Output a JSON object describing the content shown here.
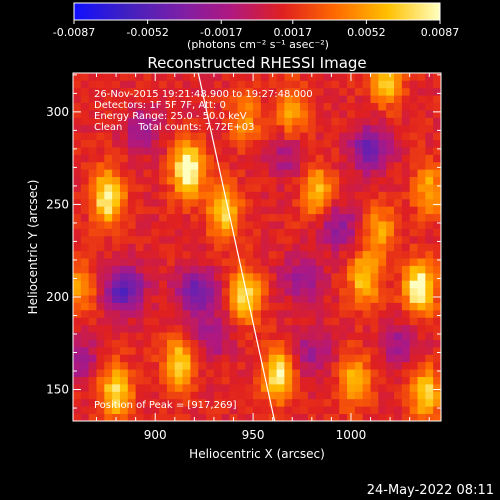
{
  "chart_data": {
    "type": "heatmap",
    "title": "Reconstructed RHESSI Image",
    "xlabel": "Heliocentric X (arcsec)",
    "ylabel": "Heliocentric Y (arcsec)",
    "xlim": [
      858,
      1046
    ],
    "ylim": [
      133,
      321
    ],
    "x_ticks": [
      900,
      950,
      1000
    ],
    "y_ticks": [
      150,
      200,
      250,
      300
    ],
    "colorbar": {
      "range": [
        -0.0087,
        0.0087
      ],
      "ticks": [
        "-0.0087",
        "-0.0052",
        "-0.0017",
        "0.0017",
        "0.0052",
        "0.0087"
      ],
      "unit_label": "(photons cm⁻² s⁻¹ asec⁻²)",
      "colormap": [
        "#1010ff",
        "#4020c0",
        "#7a1fa8",
        "#b01880",
        "#e02020",
        "#ff6a00",
        "#ffc000",
        "#ffffc0"
      ]
    },
    "annotations": [
      "26-Nov-2015 19:21:48.900 to 19:27:48.000",
      "Detectors: 1F 5F 7F, Att: 0",
      "Energy Range: 25.0 - 50.0 keV",
      "Clean     Total counts: 7.72E+03"
    ],
    "peak_label": "Position of Peak = [917,269]",
    "peak_position": [
      917,
      269
    ],
    "limb_line": [
      [
        922,
        321
      ],
      [
        961,
        133
      ]
    ],
    "sources": [
      {
        "x": 917,
        "y": 269,
        "value": 0.0087
      },
      {
        "x": 876,
        "y": 254,
        "value": 0.0075
      },
      {
        "x": 935,
        "y": 247,
        "value": 0.0062
      },
      {
        "x": 946,
        "y": 201,
        "value": 0.0068
      },
      {
        "x": 963,
        "y": 158,
        "value": 0.0072
      },
      {
        "x": 880,
        "y": 149,
        "value": 0.0065
      },
      {
        "x": 912,
        "y": 164,
        "value": 0.0058
      },
      {
        "x": 1035,
        "y": 205,
        "value": 0.0082
      },
      {
        "x": 1038,
        "y": 148,
        "value": 0.006
      },
      {
        "x": 1007,
        "y": 210,
        "value": 0.0056
      },
      {
        "x": 1002,
        "y": 155,
        "value": 0.005
      },
      {
        "x": 1018,
        "y": 318,
        "value": 0.006
      },
      {
        "x": 1040,
        "y": 258,
        "value": 0.0045
      },
      {
        "x": 970,
        "y": 300,
        "value": 0.004
      },
      {
        "x": 983,
        "y": 257,
        "value": 0.0052
      },
      {
        "x": 1015,
        "y": 236,
        "value": 0.004
      },
      {
        "x": 946,
        "y": 296,
        "value": 0.0035
      },
      {
        "x": 862,
        "y": 205,
        "value": 0.004
      }
    ],
    "negative_sources": [
      {
        "x": 884,
        "y": 204,
        "value": -0.0087
      },
      {
        "x": 921,
        "y": 203,
        "value": -0.007
      },
      {
        "x": 894,
        "y": 290,
        "value": -0.004
      },
      {
        "x": 993,
        "y": 238,
        "value": -0.005
      },
      {
        "x": 975,
        "y": 210,
        "value": -0.0045
      },
      {
        "x": 1010,
        "y": 280,
        "value": -0.007
      },
      {
        "x": 980,
        "y": 170,
        "value": -0.004
      },
      {
        "x": 860,
        "y": 167,
        "value": -0.0045
      },
      {
        "x": 1025,
        "y": 175,
        "value": -0.004
      },
      {
        "x": 968,
        "y": 276,
        "value": -0.0035
      },
      {
        "x": 930,
        "y": 180,
        "value": -0.004
      }
    ]
  },
  "footer": {
    "timestamp": "24-May-2022 08:11"
  }
}
